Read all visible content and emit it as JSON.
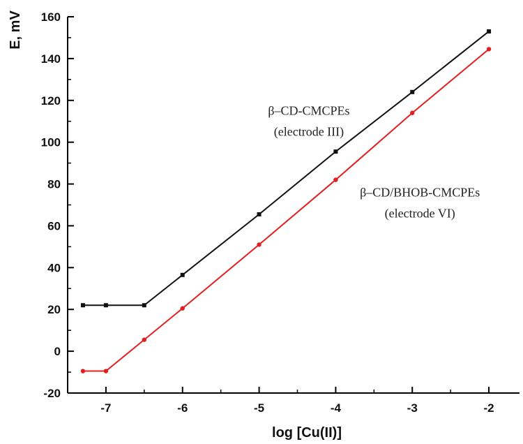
{
  "chart_data": {
    "type": "line",
    "xlabel": "log [Cu(II)]",
    "ylabel": "E, mV",
    "xlim": [
      -7.5,
      -1.6
    ],
    "ylim": [
      -20,
      160
    ],
    "x_ticks": [
      -7,
      -6,
      -5,
      -4,
      -3,
      -2
    ],
    "x_tick_labels": [
      "-7",
      "-6",
      "-5",
      "-4",
      "-3",
      "-2"
    ],
    "y_ticks": [
      -20,
      0,
      20,
      40,
      60,
      80,
      100,
      120,
      140,
      160
    ],
    "y_tick_labels": [
      "-20",
      "0",
      "20",
      "40",
      "60",
      "80",
      "100",
      "120",
      "140",
      "160"
    ],
    "grid": false,
    "series": [
      {
        "color": "#111111",
        "x": [
          -7.3,
          -7.0,
          -6.5,
          -6.0,
          -5.0,
          -4.0,
          -3.0,
          -2.0
        ],
        "y": [
          22,
          22,
          22,
          36.5,
          65.5,
          95.5,
          124,
          153
        ]
      },
      {
        "color": "#e02020",
        "x": [
          -7.3,
          -7.0,
          -6.5,
          -6.0,
          -5.0,
          -4.0,
          -3.0,
          -2.0
        ],
        "y": [
          -9.5,
          -9.5,
          5.5,
          20.5,
          51,
          82,
          114,
          144.5
        ]
      }
    ],
    "annotations": [
      {
        "line1": "β–CD-CMCPEs",
        "line2": "(electrode III)",
        "x": -4.35,
        "y": 113,
        "color": "#1a4f66"
      },
      {
        "line1": "β–CD/BHOB-CMCPEs",
        "line2": "(electrode VI)",
        "x": -2.9,
        "y": 74,
        "color": "#1a4f66"
      }
    ]
  }
}
